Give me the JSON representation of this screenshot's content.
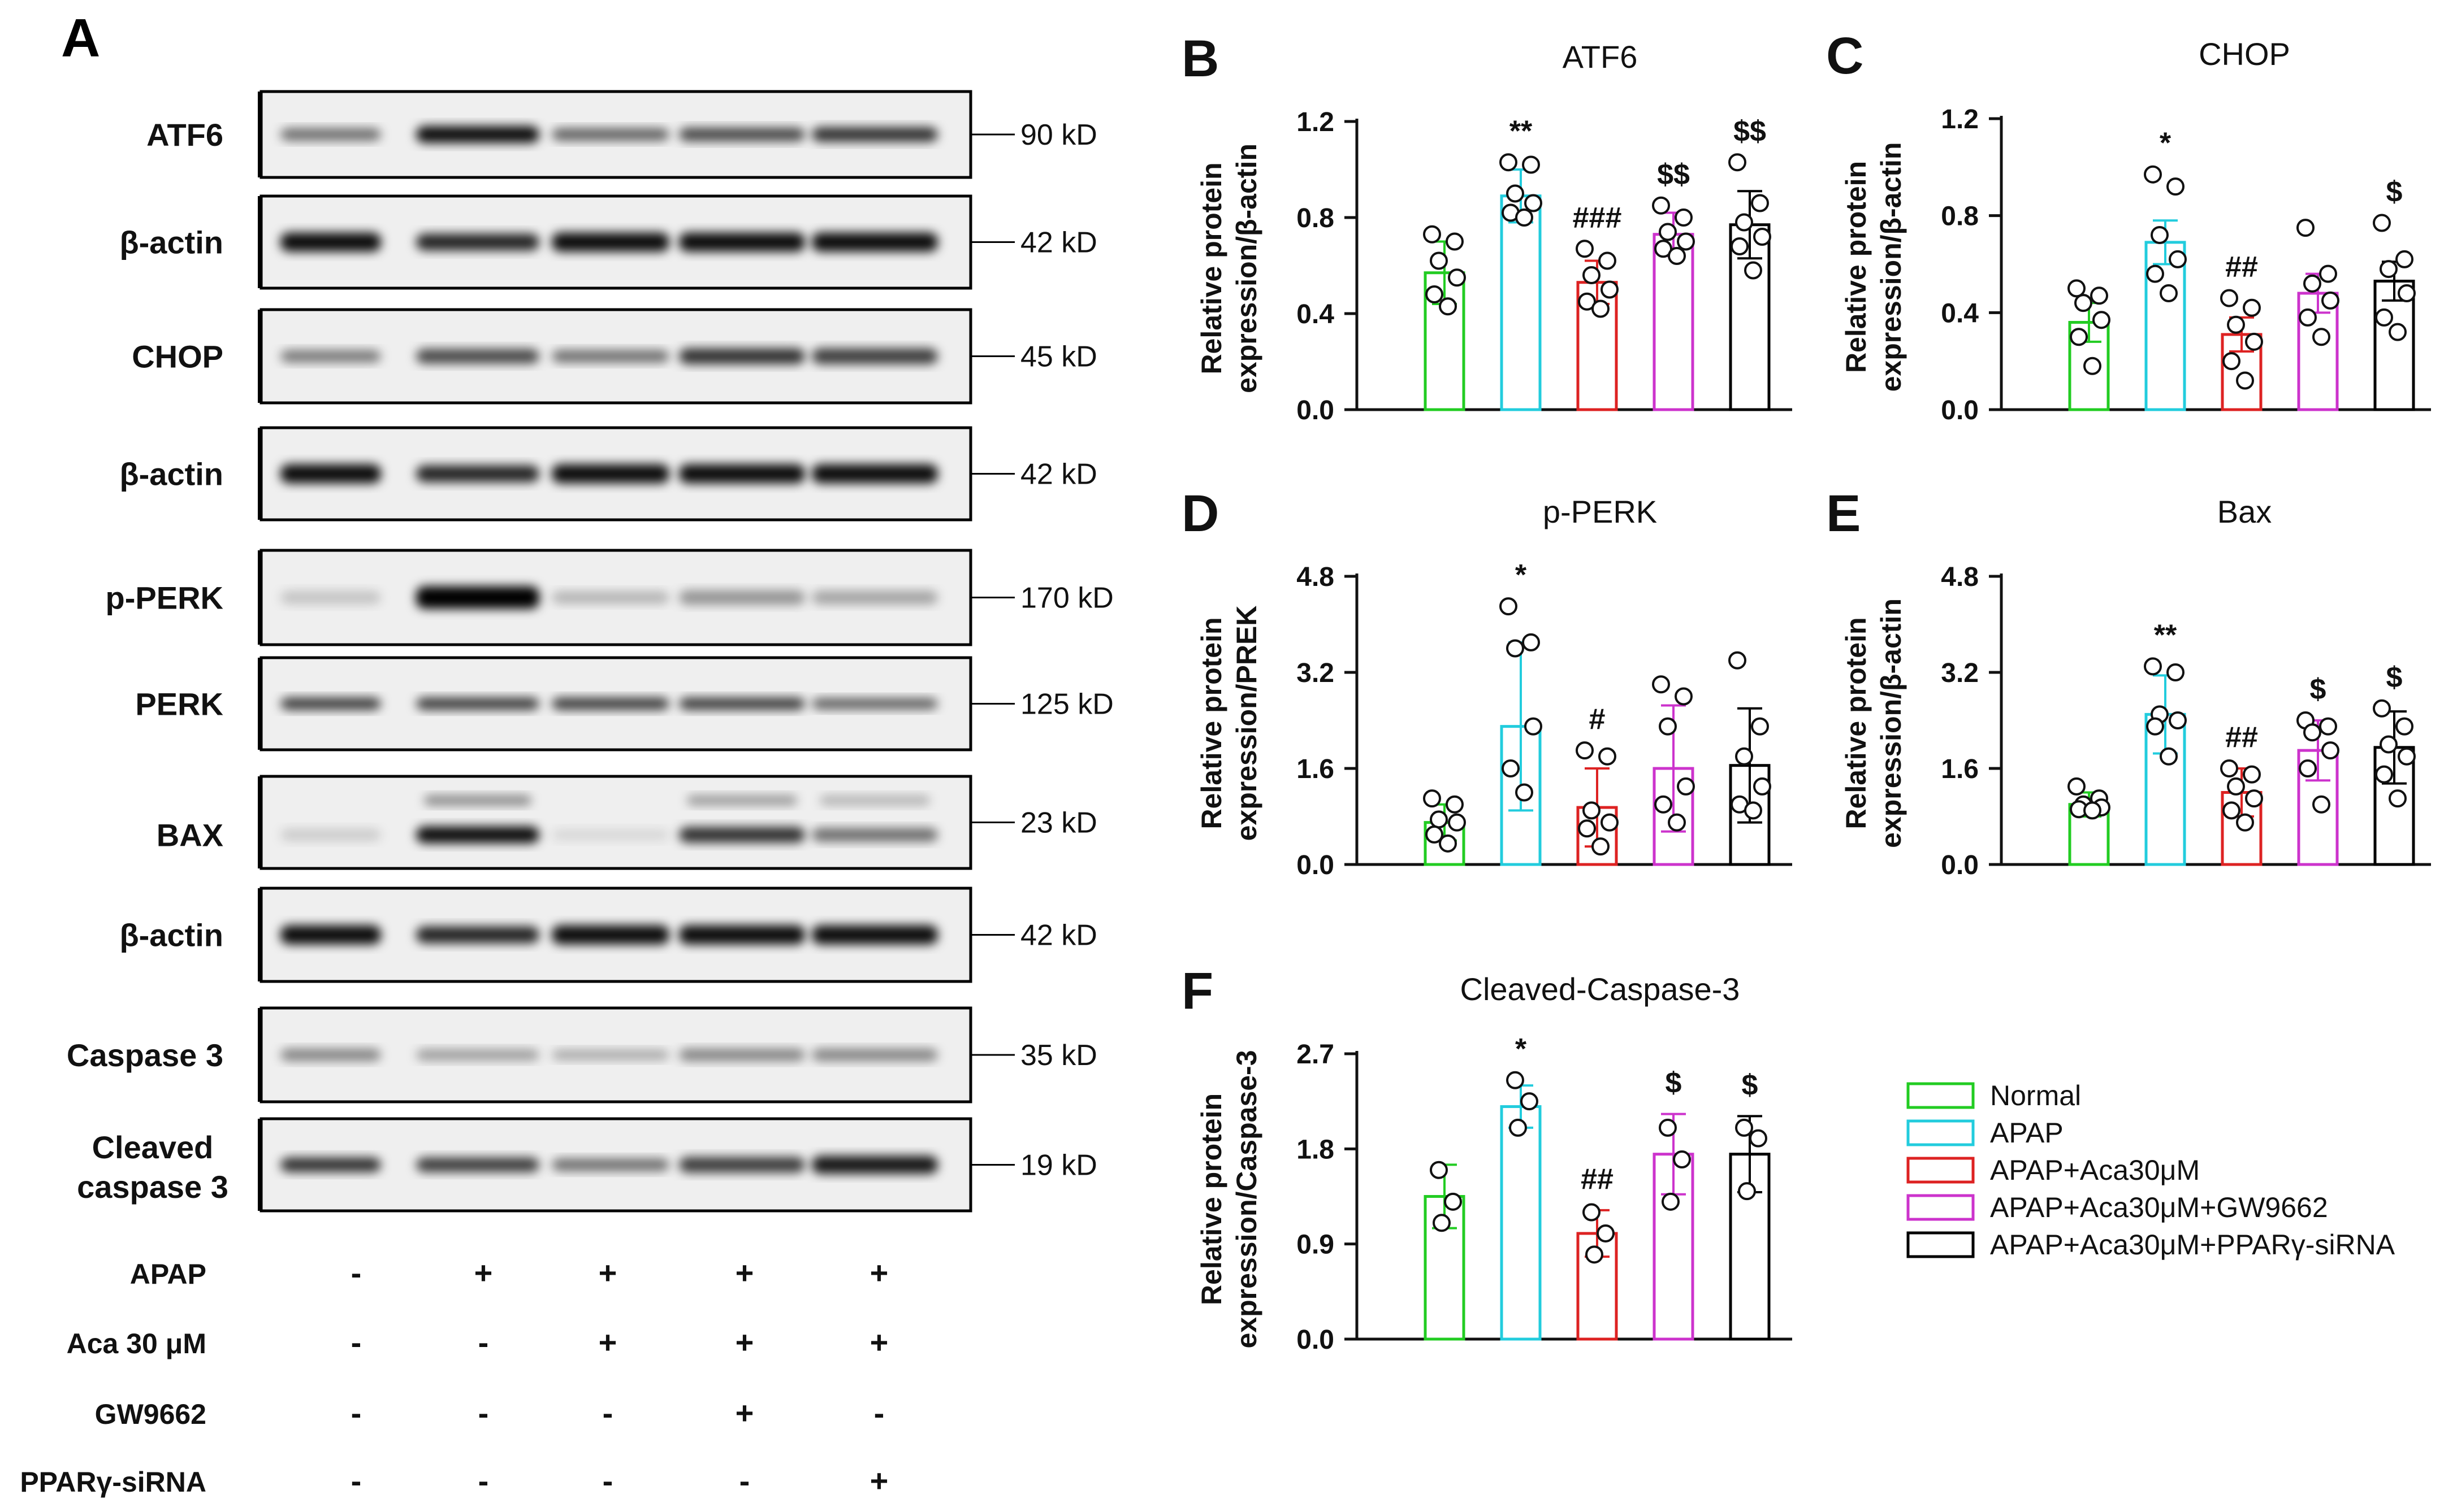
{
  "panel_a": {
    "letter": "A",
    "blots": [
      {
        "label": "ATF6",
        "size": "90 kD",
        "kind": "atf6"
      },
      {
        "label": "β-actin",
        "size": "42 kD",
        "kind": "actin"
      },
      {
        "label": "CHOP",
        "size": "45 kD",
        "kind": "chop"
      },
      {
        "label": "β-actin",
        "size": "42 kD",
        "kind": "actin"
      },
      {
        "label": "p-PERK",
        "size": "170 kD",
        "kind": "pperk"
      },
      {
        "label": "PERK",
        "size": "125 kD",
        "kind": "perk"
      },
      {
        "label": "BAX",
        "size": "23 kD",
        "kind": "bax"
      },
      {
        "label": "β-actin",
        "size": "42 kD",
        "kind": "actin"
      },
      {
        "label": "Caspase 3",
        "size": "35 kD",
        "kind": "casp"
      },
      {
        "label_lines": [
          "Cleaved",
          "caspase 3"
        ],
        "size": "19 kD",
        "kind": "cleaved"
      }
    ],
    "treatments": [
      {
        "label": "APAP",
        "signs": [
          "-",
          "+",
          "+",
          "+",
          "+"
        ]
      },
      {
        "label": "Aca 30 μM",
        "signs": [
          "-",
          "-",
          "+",
          "+",
          "+"
        ]
      },
      {
        "label": "GW9662",
        "signs": [
          "-",
          "-",
          "-",
          "+",
          "-"
        ]
      },
      {
        "label": "PPARγ-siRNA",
        "signs": [
          "-",
          "-",
          "-",
          "-",
          "+"
        ]
      }
    ]
  },
  "legend": [
    {
      "label": "Normal",
      "color": "#22cc22"
    },
    {
      "label": "APAP",
      "color": "#22ccdd"
    },
    {
      "label": "APAP+Aca30μM",
      "color": "#dd2222"
    },
    {
      "label": "APAP+Aca30μM+GW9662",
      "color": "#cc33cc"
    },
    {
      "label": "APAP+Aca30μM+PPARγ-siRNA",
      "color": "#000000"
    }
  ],
  "chart_data": [
    {
      "type": "bar",
      "letter": "B",
      "title": "ATF6",
      "ylabel": [
        "Relative protein",
        "expression/β-actin"
      ],
      "ylim": [
        0,
        1.2
      ],
      "yticks": [
        "0.0",
        "0.4",
        "0.8",
        "1.2"
      ],
      "categories": [
        "Normal",
        "APAP",
        "APAP+Aca30μM",
        "APAP+Aca30μM+GW9662",
        "APAP+Aca30μM+PPARγ-siRNA"
      ],
      "values": [
        0.57,
        0.89,
        0.53,
        0.73,
        0.77
      ],
      "errors": [
        0.13,
        0.11,
        0.09,
        0.09,
        0.14
      ],
      "points": [
        [
          0.73,
          0.7,
          0.62,
          0.55,
          0.48,
          0.43
        ],
        [
          1.03,
          1.02,
          0.9,
          0.86,
          0.82,
          0.8
        ],
        [
          0.67,
          0.62,
          0.56,
          0.5,
          0.45,
          0.42
        ],
        [
          0.85,
          0.8,
          0.74,
          0.7,
          0.67,
          0.64
        ],
        [
          1.03,
          0.86,
          0.78,
          0.72,
          0.68,
          0.58
        ]
      ],
      "sig": [
        "",
        "**",
        "###",
        "$$",
        "$$"
      ]
    },
    {
      "type": "bar",
      "letter": "C",
      "title": "CHOP",
      "ylabel": [
        "Relative protein",
        "expression/β-actin"
      ],
      "ylim": [
        0,
        1.2
      ],
      "yticks": [
        "0.0",
        "0.4",
        "0.8",
        "1.2"
      ],
      "categories": [
        "Normal",
        "APAP",
        "APAP+Aca30μM",
        "APAP+Aca30μM+GW9662",
        "APAP+Aca30μM+PPARγ-siRNA"
      ],
      "values": [
        0.36,
        0.69,
        0.31,
        0.48,
        0.53
      ],
      "errors": [
        0.08,
        0.09,
        0.07,
        0.08,
        0.08
      ],
      "points": [
        [
          0.5,
          0.47,
          0.44,
          0.37,
          0.3,
          0.18
        ],
        [
          0.97,
          0.92,
          0.72,
          0.62,
          0.56,
          0.48
        ],
        [
          0.46,
          0.42,
          0.35,
          0.28,
          0.2,
          0.12
        ],
        [
          0.75,
          0.56,
          0.52,
          0.45,
          0.38,
          0.3
        ],
        [
          0.77,
          0.62,
          0.58,
          0.48,
          0.38,
          0.32
        ]
      ],
      "sig": [
        "",
        "*",
        "##",
        "",
        "$"
      ]
    },
    {
      "type": "bar",
      "letter": "D",
      "title": "p-PERK",
      "ylabel": [
        "Relative protein",
        "expression/PREK"
      ],
      "ylim": [
        0,
        4.8
      ],
      "yticks": [
        "0.0",
        "1.6",
        "3.2",
        "4.8"
      ],
      "categories": [
        "Normal",
        "APAP",
        "APAP+Aca30μM",
        "APAP+Aca30μM+GW9662",
        "APAP+Aca30μM+PPARγ-siRNA"
      ],
      "values": [
        0.7,
        2.3,
        0.95,
        1.6,
        1.65
      ],
      "errors": [
        0.3,
        1.4,
        0.65,
        1.05,
        0.95
      ],
      "points": [
        [
          1.1,
          1.0,
          0.75,
          0.7,
          0.5,
          0.35
        ],
        [
          4.3,
          3.7,
          3.6,
          2.3,
          1.6,
          1.2
        ],
        [
          1.9,
          1.8,
          0.9,
          0.7,
          0.6,
          0.3
        ],
        [
          3.0,
          2.8,
          2.3,
          1.3,
          1.0,
          0.7
        ],
        [
          3.4,
          2.3,
          1.8,
          1.3,
          1.0,
          0.9
        ]
      ],
      "sig": [
        "",
        "*",
        "#",
        "",
        ""
      ]
    },
    {
      "type": "bar",
      "letter": "E",
      "title": "Bax",
      "ylabel": [
        "Relative protein",
        "expression/β-actin"
      ],
      "ylim": [
        0,
        4.8
      ],
      "yticks": [
        "0.0",
        "1.6",
        "3.2",
        "4.8"
      ],
      "categories": [
        "Normal",
        "APAP",
        "APAP+Aca30μM",
        "APAP+Aca30μM+GW9662",
        "APAP+Aca30μM+PPARγ-siRNA"
      ],
      "values": [
        1.0,
        2.5,
        1.2,
        1.9,
        1.95
      ],
      "errors": [
        0.2,
        0.65,
        0.4,
        0.5,
        0.6
      ],
      "points": [
        [
          1.3,
          1.1,
          1.0,
          0.95,
          0.92,
          0.9
        ],
        [
          3.3,
          3.2,
          2.5,
          2.4,
          2.3,
          1.8
        ],
        [
          1.6,
          1.5,
          1.3,
          1.1,
          0.9,
          0.7
        ],
        [
          2.4,
          2.3,
          2.2,
          1.9,
          1.6,
          1.0
        ],
        [
          2.6,
          2.3,
          2.0,
          1.8,
          1.5,
          1.1
        ]
      ],
      "sig": [
        "",
        "**",
        "##",
        "$",
        "$"
      ]
    },
    {
      "type": "bar",
      "letter": "F",
      "title": "Cleaved-Caspase-3",
      "ylabel": [
        "Relative protein",
        "expression/Caspase-3"
      ],
      "ylim": [
        0,
        2.7
      ],
      "yticks": [
        "0.0",
        "0.9",
        "1.8",
        "2.7"
      ],
      "categories": [
        "Normal",
        "APAP",
        "APAP+Aca30μM",
        "APAP+Aca30μM+GW9662",
        "APAP+Aca30μM+PPARγ-siRNA"
      ],
      "values": [
        1.35,
        2.2,
        1.0,
        1.75,
        1.75
      ],
      "errors": [
        0.3,
        0.2,
        0.22,
        0.38,
        0.36
      ],
      "points": [
        [
          1.6,
          1.3,
          1.1
        ],
        [
          2.45,
          2.25,
          2.0
        ],
        [
          1.2,
          1.0,
          0.8
        ],
        [
          2.0,
          1.7,
          1.3
        ],
        [
          2.0,
          1.9,
          1.4
        ]
      ],
      "sig": [
        "",
        "*",
        "##",
        "$",
        "$"
      ]
    }
  ]
}
